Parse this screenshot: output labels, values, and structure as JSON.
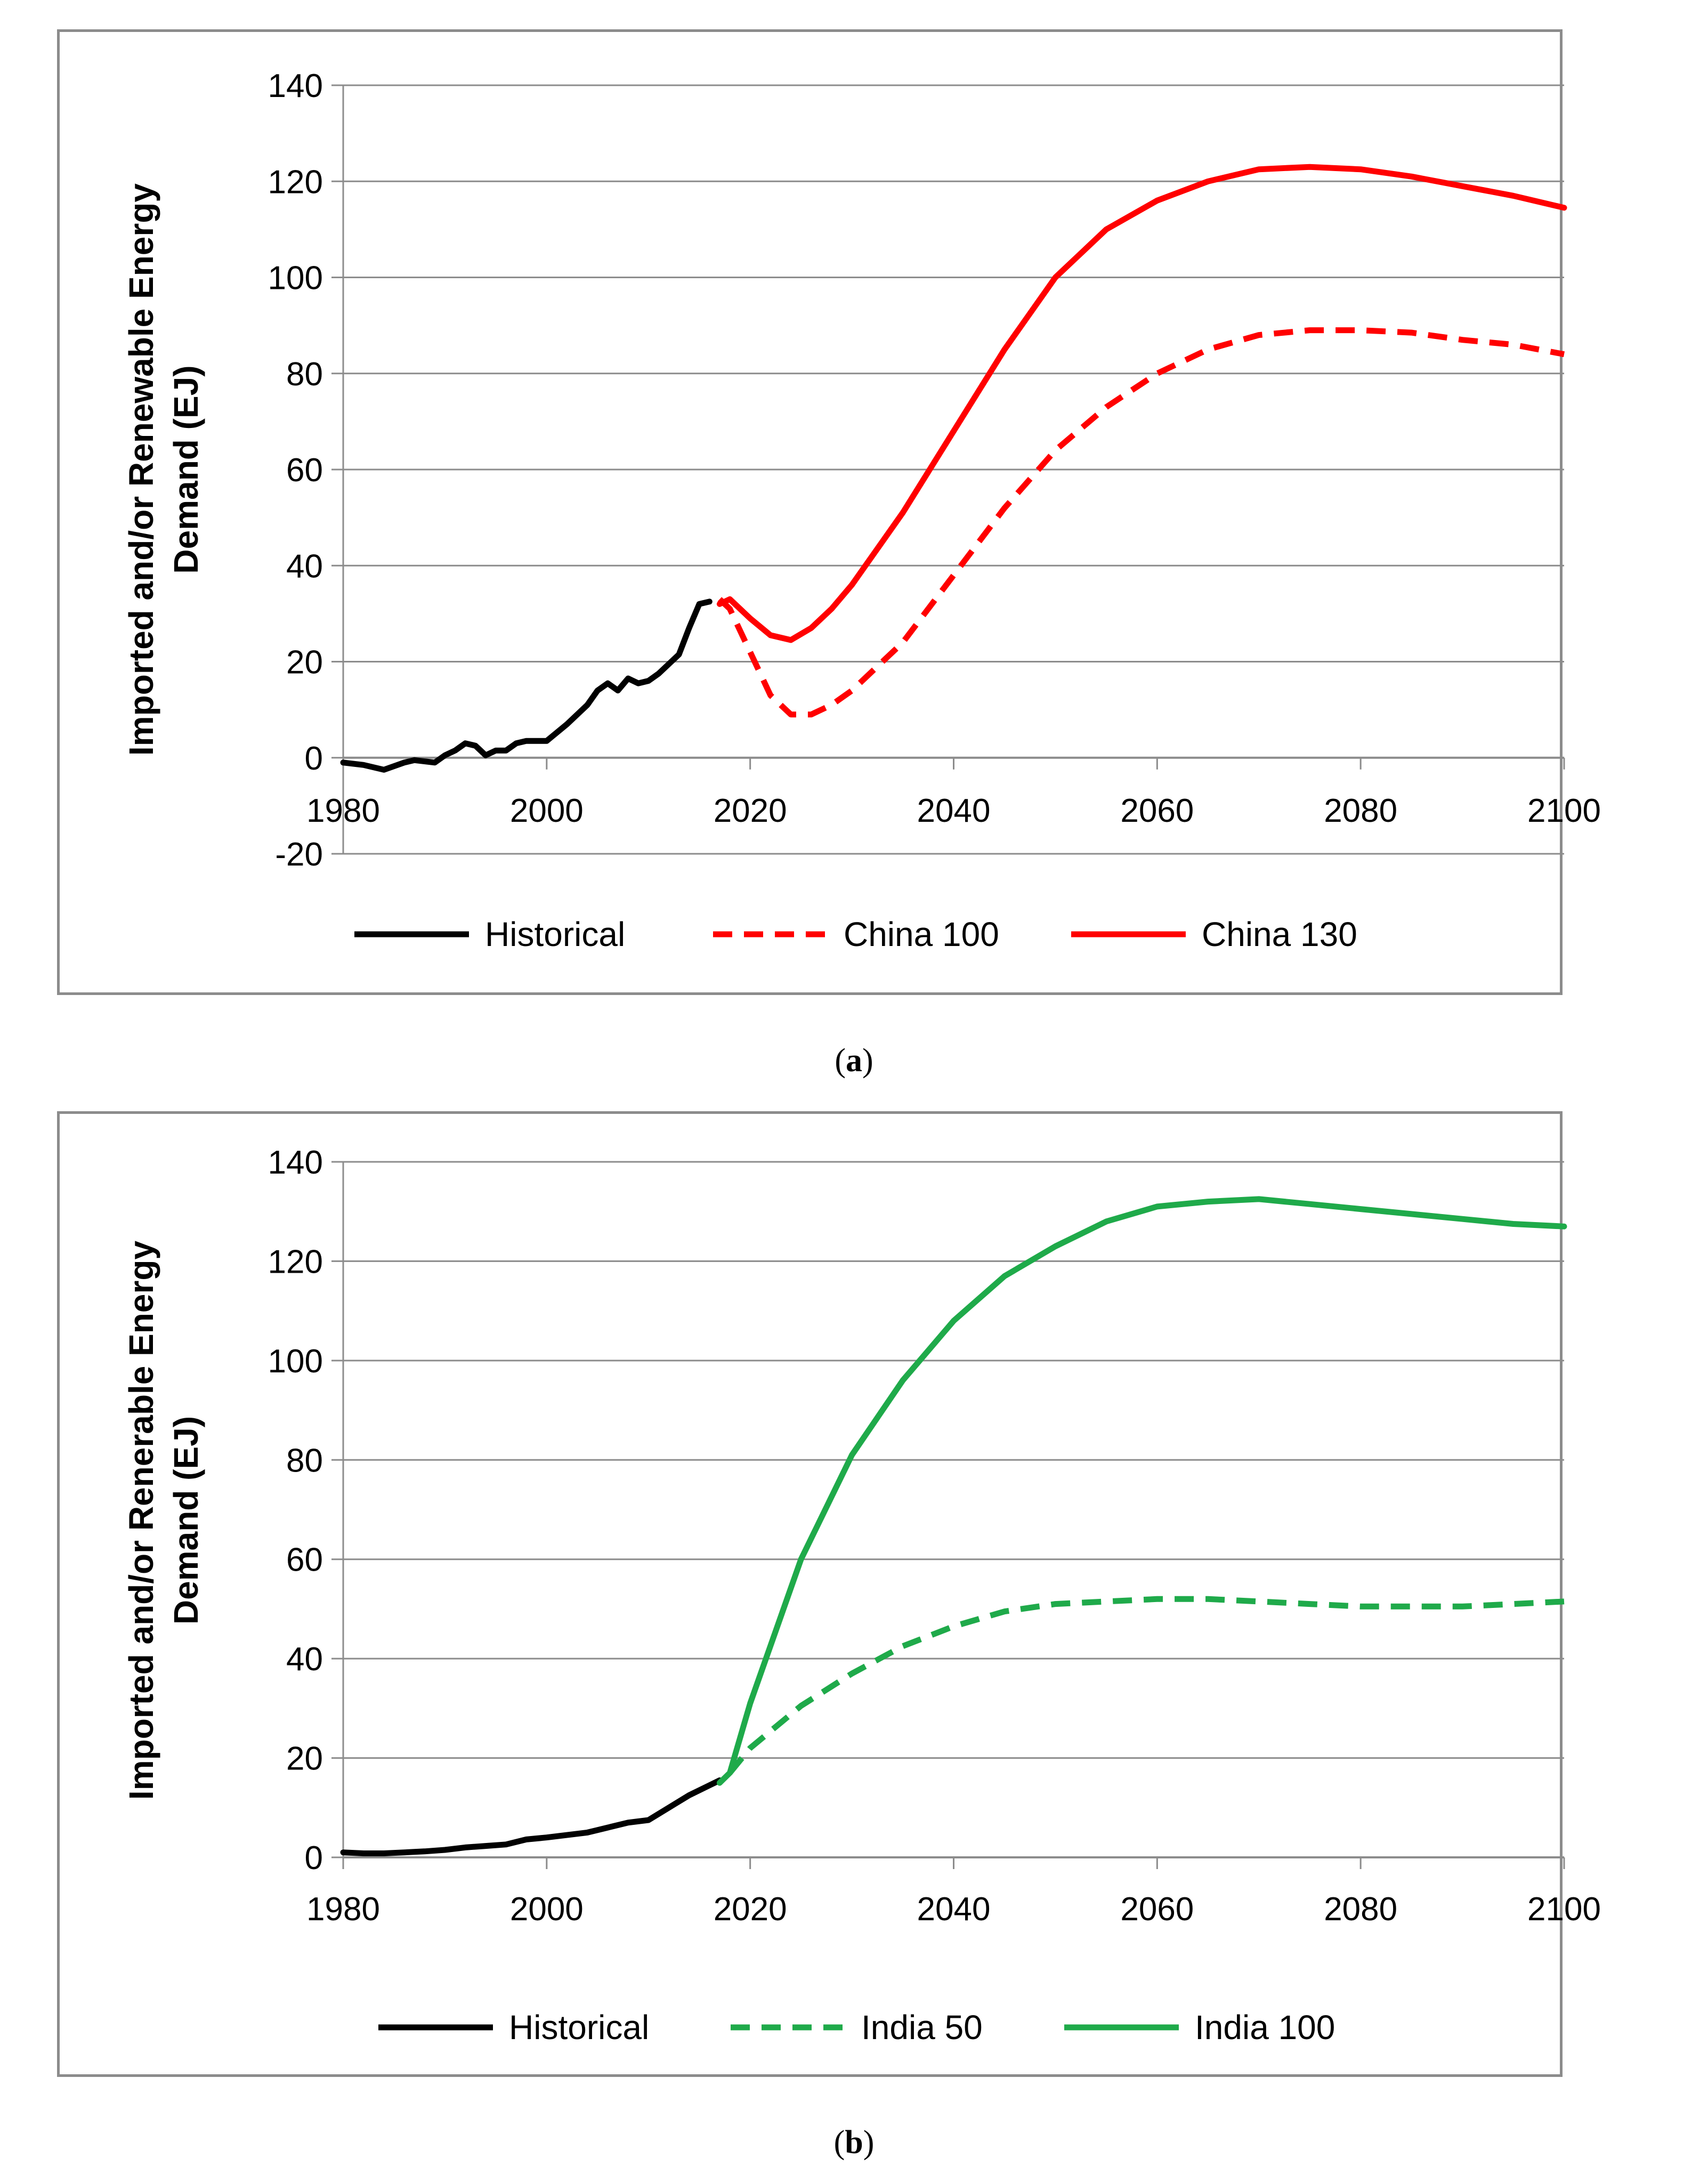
{
  "chart_data": [
    {
      "id": "a",
      "type": "line",
      "caption_label": "a",
      "ylabel_line1": "Imported and/or Renewable Energy",
      "ylabel_line2": "Demand (EJ)",
      "xlabel": "",
      "xlim": [
        1980,
        2100
      ],
      "ylim": [
        -20,
        140
      ],
      "xticks": [
        1980,
        2000,
        2020,
        2040,
        2060,
        2080,
        2100
      ],
      "yticks": [
        -20,
        0,
        20,
        40,
        60,
        80,
        100,
        120,
        140
      ],
      "grid": true,
      "legend": "bottom",
      "series": [
        {
          "name": "Historical",
          "color": "#000000",
          "dash": false,
          "x": [
            1980,
            1982,
            1984,
            1986,
            1987,
            1989,
            1990,
            1991,
            1992,
            1993,
            1994,
            1995,
            1996,
            1997,
            1998,
            2000,
            2002,
            2004,
            2005,
            2006,
            2007,
            2008,
            2009,
            2010,
            2011,
            2012,
            2013,
            2014,
            2015,
            2016
          ],
          "y": [
            -1,
            -1.5,
            -2.5,
            -1,
            -0.5,
            -1,
            0.5,
            1.5,
            3,
            2.5,
            0.5,
            1.5,
            1.5,
            3,
            3.5,
            3.5,
            7,
            11,
            14,
            15.5,
            14,
            16.5,
            15.5,
            16,
            17.5,
            19.5,
            21.5,
            27,
            32,
            32.5
          ]
        },
        {
          "name": "China 100",
          "color": "#ff0000",
          "dash": true,
          "x": [
            2017,
            2018,
            2020,
            2022,
            2024,
            2026,
            2028,
            2030,
            2035,
            2040,
            2045,
            2050,
            2055,
            2060,
            2065,
            2070,
            2075,
            2080,
            2085,
            2090,
            2095,
            2100
          ],
          "y": [
            33,
            31,
            22,
            13,
            9,
            9,
            11,
            14,
            24,
            38,
            52,
            64,
            73,
            80,
            85,
            88,
            89,
            89,
            88.5,
            87,
            86,
            84
          ]
        },
        {
          "name": "China 130",
          "color": "#ff0000",
          "dash": false,
          "x": [
            2017,
            2018,
            2020,
            2022,
            2024,
            2026,
            2028,
            2030,
            2035,
            2040,
            2045,
            2050,
            2055,
            2060,
            2065,
            2070,
            2075,
            2080,
            2085,
            2090,
            2095,
            2100
          ],
          "y": [
            32,
            33,
            29,
            25.5,
            24.5,
            27,
            31,
            36,
            51,
            68,
            85,
            100,
            110,
            116,
            120,
            122.5,
            123,
            122.5,
            121,
            119,
            117,
            114.5
          ]
        }
      ]
    },
    {
      "id": "b",
      "type": "line",
      "caption_label": "b",
      "ylabel_line1": "Imported and/or Renerable Energy",
      "ylabel_line2": "Demand (EJ)",
      "xlabel": "",
      "xlim": [
        1980,
        2100
      ],
      "ylim": [
        0,
        140
      ],
      "xticks": [
        1980,
        2000,
        2020,
        2040,
        2060,
        2080,
        2100
      ],
      "yticks": [
        0,
        20,
        40,
        60,
        80,
        100,
        120,
        140
      ],
      "grid": true,
      "legend": "bottom",
      "series": [
        {
          "name": "Historical",
          "color": "#000000",
          "dash": false,
          "x": [
            1980,
            1982,
            1984,
            1986,
            1988,
            1990,
            1992,
            1994,
            1996,
            1998,
            2000,
            2002,
            2004,
            2006,
            2008,
            2010,
            2012,
            2014,
            2016,
            2017
          ],
          "y": [
            1,
            0.8,
            0.8,
            1,
            1.2,
            1.5,
            2,
            2.3,
            2.6,
            3.6,
            4,
            4.5,
            5,
            6,
            7,
            7.5,
            10,
            12.5,
            14.5,
            15.5
          ]
        },
        {
          "name": "India 50",
          "color": "#1faa4a",
          "dash": true,
          "x": [
            2018,
            2020,
            2025,
            2030,
            2035,
            2040,
            2045,
            2050,
            2055,
            2060,
            2065,
            2070,
            2075,
            2080,
            2085,
            2090,
            2095,
            2100
          ],
          "y": [
            17,
            22,
            30.5,
            37,
            42.5,
            46.5,
            49.5,
            51,
            51.5,
            52,
            52,
            51.5,
            51,
            50.5,
            50.5,
            50.5,
            51,
            51.5
          ]
        },
        {
          "name": "India 100",
          "color": "#1faa4a",
          "dash": false,
          "x": [
            2017,
            2018,
            2020,
            2025,
            2030,
            2035,
            2040,
            2045,
            2050,
            2055,
            2060,
            2065,
            2070,
            2075,
            2080,
            2085,
            2090,
            2095,
            2100
          ],
          "y": [
            15,
            17,
            31,
            60,
            81,
            96,
            108,
            117,
            123,
            128,
            131,
            132,
            132.5,
            131.5,
            130.5,
            129.5,
            128.5,
            127.5,
            127
          ]
        }
      ]
    }
  ]
}
